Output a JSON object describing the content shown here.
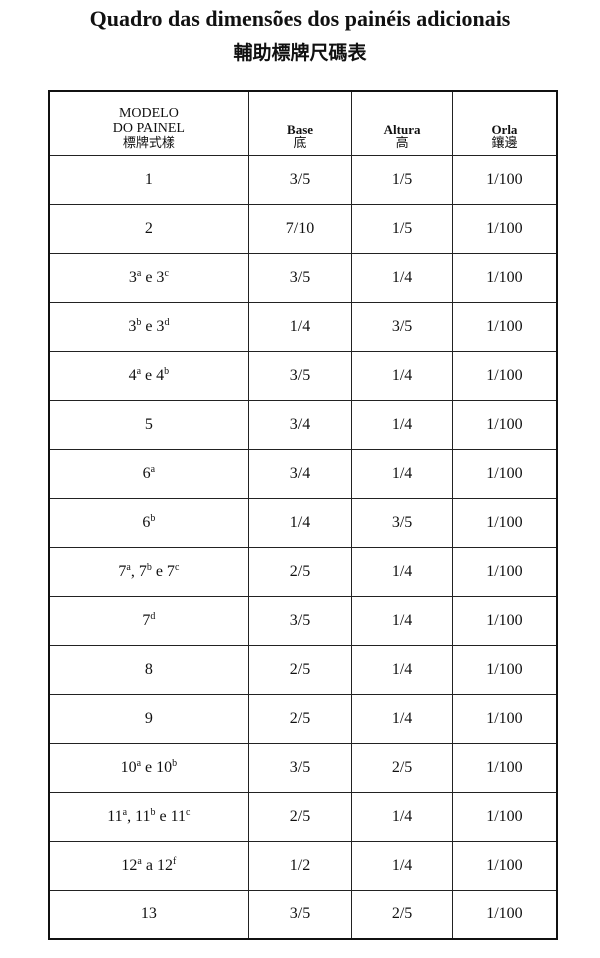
{
  "title": "Quadro das dimensões dos painéis adicionais",
  "subtitle": "輔助標牌尺碼表",
  "headers": {
    "model_line1": "MODELO",
    "model_line2": "DO PAINEL",
    "model_zh": "標牌式樣",
    "base": "Base",
    "base_zh": "底",
    "altura": "Altura",
    "altura_zh": "高",
    "orla": "Orla",
    "orla_zh": "鑲邊"
  },
  "rows": [
    {
      "model": [
        {
          "t": "1"
        }
      ],
      "base": "3/5",
      "altura": "1/5",
      "orla": "1/100"
    },
    {
      "model": [
        {
          "t": "2"
        }
      ],
      "base": "7/10",
      "altura": "1/5",
      "orla": "1/100"
    },
    {
      "model": [
        {
          "t": "3"
        },
        {
          "t": "a",
          "sup": true
        },
        {
          "t": " e 3"
        },
        {
          "t": "c",
          "sup": true
        }
      ],
      "base": "3/5",
      "altura": "1/4",
      "orla": "1/100"
    },
    {
      "model": [
        {
          "t": "3"
        },
        {
          "t": "b",
          "sup": true
        },
        {
          "t": " e 3"
        },
        {
          "t": "d",
          "sup": true
        }
      ],
      "base": "1/4",
      "altura": "3/5",
      "orla": "1/100"
    },
    {
      "model": [
        {
          "t": "4"
        },
        {
          "t": "a",
          "sup": true
        },
        {
          "t": " e 4"
        },
        {
          "t": "b",
          "sup": true
        }
      ],
      "base": "3/5",
      "altura": "1/4",
      "orla": "1/100"
    },
    {
      "model": [
        {
          "t": "5"
        }
      ],
      "base": "3/4",
      "altura": "1/4",
      "orla": "1/100"
    },
    {
      "model": [
        {
          "t": "6"
        },
        {
          "t": "a",
          "sup": true
        }
      ],
      "base": "3/4",
      "altura": "1/4",
      "orla": "1/100"
    },
    {
      "model": [
        {
          "t": "6"
        },
        {
          "t": "b",
          "sup": true
        }
      ],
      "base": "1/4",
      "altura": "3/5",
      "orla": "1/100"
    },
    {
      "model": [
        {
          "t": "7"
        },
        {
          "t": "a",
          "sup": true
        },
        {
          "t": ", 7"
        },
        {
          "t": "b",
          "sup": true
        },
        {
          "t": " e 7"
        },
        {
          "t": "c",
          "sup": true
        }
      ],
      "base": "2/5",
      "altura": "1/4",
      "orla": "1/100"
    },
    {
      "model": [
        {
          "t": "7"
        },
        {
          "t": "d",
          "sup": true
        }
      ],
      "base": "3/5",
      "altura": "1/4",
      "orla": "1/100"
    },
    {
      "model": [
        {
          "t": "8"
        }
      ],
      "base": "2/5",
      "altura": "1/4",
      "orla": "1/100"
    },
    {
      "model": [
        {
          "t": "9"
        }
      ],
      "base": "2/5",
      "altura": "1/4",
      "orla": "1/100"
    },
    {
      "model": [
        {
          "t": "10"
        },
        {
          "t": "a",
          "sup": true
        },
        {
          "t": " e 10"
        },
        {
          "t": "b",
          "sup": true
        }
      ],
      "base": "3/5",
      "altura": "2/5",
      "orla": "1/100"
    },
    {
      "model": [
        {
          "t": "11"
        },
        {
          "t": "a",
          "sup": true
        },
        {
          "t": ", 11"
        },
        {
          "t": "b",
          "sup": true
        },
        {
          "t": " e 11"
        },
        {
          "t": "c",
          "sup": true
        }
      ],
      "base": "2/5",
      "altura": "1/4",
      "orla": "1/100"
    },
    {
      "model": [
        {
          "t": "12"
        },
        {
          "t": "a",
          "sup": true
        },
        {
          "t": " a 12"
        },
        {
          "t": "f",
          "sup": true
        }
      ],
      "base": "1/2",
      "altura": "1/4",
      "orla": "1/100"
    },
    {
      "model": [
        {
          "t": "13"
        }
      ],
      "base": "3/5",
      "altura": "2/5",
      "orla": "1/100"
    }
  ]
}
